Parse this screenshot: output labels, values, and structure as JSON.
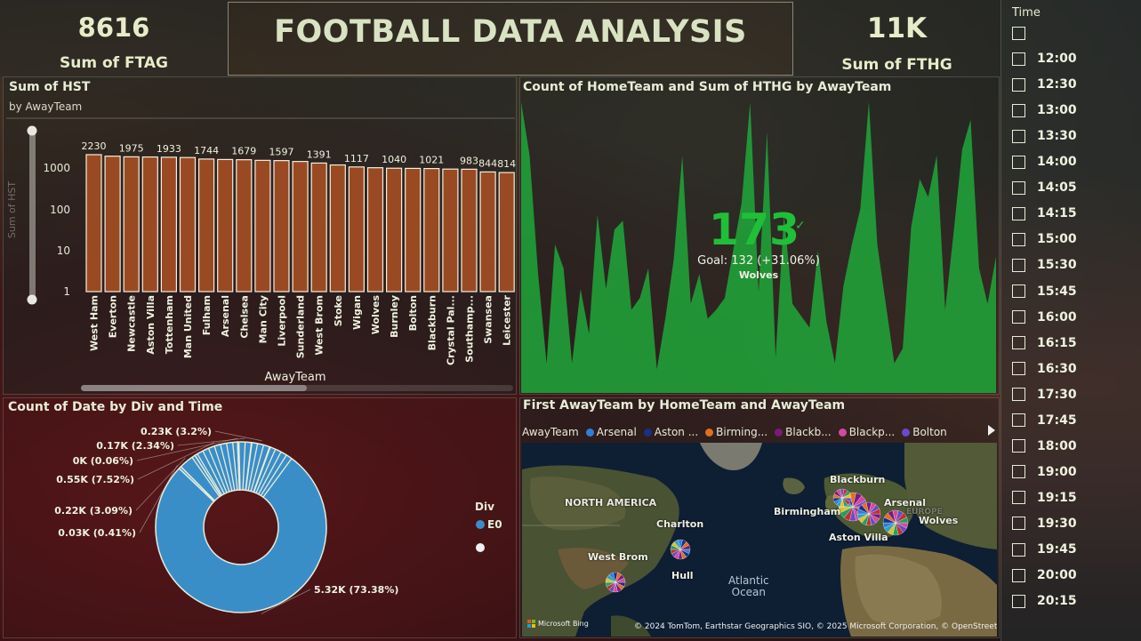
{
  "kpis": {
    "ftag_value": "8616",
    "ftag_label": "Sum of FTAG",
    "fthg_value": "11K",
    "fthg_label": "Sum of FTHG"
  },
  "header": {
    "title": "FOOTBALL DATA ANALYSIS"
  },
  "bar_panel": {
    "title": "Sum of HST",
    "subtitle": "by AwayTeam",
    "xlabel": "AwayTeam",
    "ylabel": "Sum of HST",
    "y_ticks": [
      "1000",
      "100",
      "10",
      "1"
    ]
  },
  "area_panel": {
    "title": "Count of HomeTeam and Sum of HTHG by AwayTeam",
    "kpi_value": "173",
    "kpi_goal": "Goal: 132 (+31.06%)",
    "kpi_team": "Wolves"
  },
  "donut_panel": {
    "title": "Count of Date by Div and Time",
    "legend_title": "Div",
    "legend_items": [
      "E0",
      ""
    ]
  },
  "map_panel": {
    "title": "First AwayTeam by HomeTeam and AwayTeam",
    "legend_label": "AwayTeam",
    "legend_items": [
      {
        "name": "Arsenal",
        "color": "#2f7ed8"
      },
      {
        "name": "Aston ...",
        "color": "#1a2f8a"
      },
      {
        "name": "Birming...",
        "color": "#e07020"
      },
      {
        "name": "Blackb...",
        "color": "#7a1a7a"
      },
      {
        "name": "Blackp...",
        "color": "#d04aa0"
      },
      {
        "name": "Bolton",
        "color": "#6a4ac8"
      }
    ],
    "labels": {
      "north_america": "NORTH AMERICA",
      "charlton": "Charlton",
      "west_brom": "West Brom",
      "hull": "Hull",
      "atlantic": "Atlantic",
      "ocean": "Ocean",
      "blackburn": "Blackburn",
      "arsenal": "Arsenal",
      "birmingham": "Birmingham",
      "aston_villa": "Aston Villa",
      "wolves": "Wolves",
      "europe": "EUROPE"
    },
    "bing": "Microsoft Bing",
    "credit": "© 2024 TomTom, Earthstar Geographics SIO, © 2025 Microsoft Corporation, © OpenStreetMap"
  },
  "slicer": {
    "title": "Time",
    "items": [
      "",
      "12:00",
      "12:30",
      "13:00",
      "13:30",
      "14:00",
      "14:05",
      "14:15",
      "15:00",
      "15:30",
      "15:45",
      "16:00",
      "16:15",
      "16:30",
      "17:30",
      "17:45",
      "18:00",
      "19:00",
      "19:15",
      "19:30",
      "19:45",
      "20:00",
      "20:15"
    ]
  },
  "chart_data": [
    {
      "type": "bar",
      "title": "Sum of HST",
      "subtitle": "by AwayTeam",
      "xlabel": "AwayTeam",
      "ylabel": "Sum of HST",
      "yscale": "log",
      "ylim": [
        1,
        3000
      ],
      "bar_color": "#9a4a22",
      "categories": [
        "West Ham",
        "Everton",
        "Newcastle",
        "Aston Villa",
        "Tottenham",
        "Man United",
        "Fulham",
        "Arsenal",
        "Chelsea",
        "Man City",
        "Liverpool",
        "Sunderland",
        "West Brom",
        "Stoke",
        "Wigan",
        "Wolves",
        "Burnley",
        "Bolton",
        "Blackburn",
        "Crystal Pal...",
        "Southamp...",
        "Swansea",
        "Leicester"
      ],
      "values": [
        2230,
        2050,
        1975,
        1960,
        1933,
        1900,
        1744,
        1700,
        1679,
        1620,
        1597,
        1520,
        1391,
        1250,
        1117,
        1070,
        1040,
        1030,
        1021,
        990,
        983,
        844,
        814
      ],
      "data_labels": [
        "2230",
        "",
        "1975",
        "",
        "1933",
        "",
        "1744",
        "",
        "1679",
        "",
        "1597",
        "",
        "1391",
        "",
        "1117",
        "",
        "1040",
        "",
        "1021",
        "",
        "983",
        "844",
        "814"
      ]
    },
    {
      "type": "area",
      "title": "Count of HomeTeam and Sum of HTHG by AwayTeam",
      "color": "#1fae3a",
      "values": [
        98,
        80,
        40,
        10,
        50,
        42,
        10,
        35,
        20,
        60,
        35,
        55,
        58,
        28,
        32,
        42,
        8,
        25,
        45,
        80,
        30,
        40,
        25,
        28,
        32,
        48,
        64,
        98,
        34,
        88,
        12,
        60,
        30,
        26,
        22,
        48,
        24,
        10,
        36,
        50,
        62,
        98,
        50,
        30,
        10,
        15,
        56,
        72,
        66,
        80,
        28,
        54,
        82,
        92,
        42,
        30,
        46
      ]
    },
    {
      "type": "pie",
      "title": "Count of Date by Div and Time",
      "legend_title": "Div",
      "legend": [
        "E0"
      ],
      "color": "#3a8ec8",
      "slices": [
        {
          "label": "5.32K (73.38%)",
          "value": 5320
        },
        {
          "label": "0.03K (0.41%)",
          "value": 30
        },
        {
          "label": "0.22K (3.09%)",
          "value": 220
        },
        {
          "label": "0.55K (7.52%)",
          "value": 550
        },
        {
          "label": "0K (0.06%)",
          "value": 4
        },
        {
          "label": "0.17K (2.34%)",
          "value": 170
        },
        {
          "label": "0.23K (3.2%)",
          "value": 230
        }
      ]
    }
  ]
}
